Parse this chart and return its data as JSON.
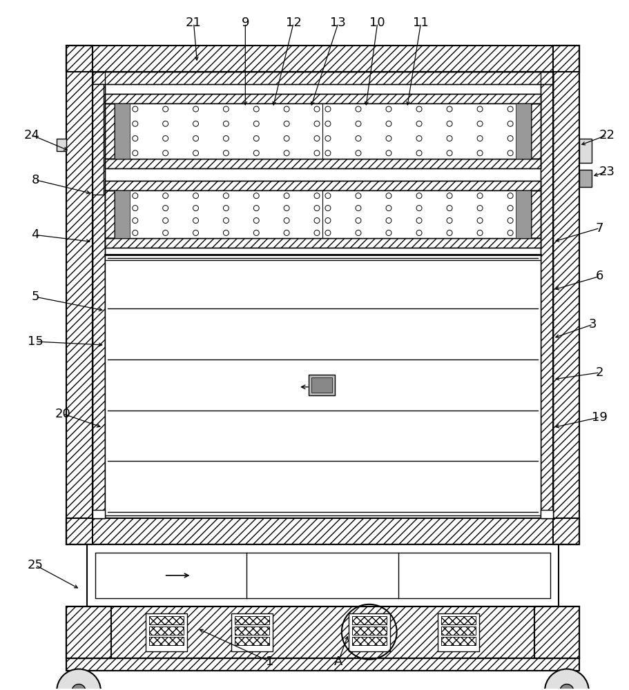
{
  "bg_color": "#ffffff",
  "fig_width": 9.12,
  "fig_height": 10.0,
  "dpi": 100
}
